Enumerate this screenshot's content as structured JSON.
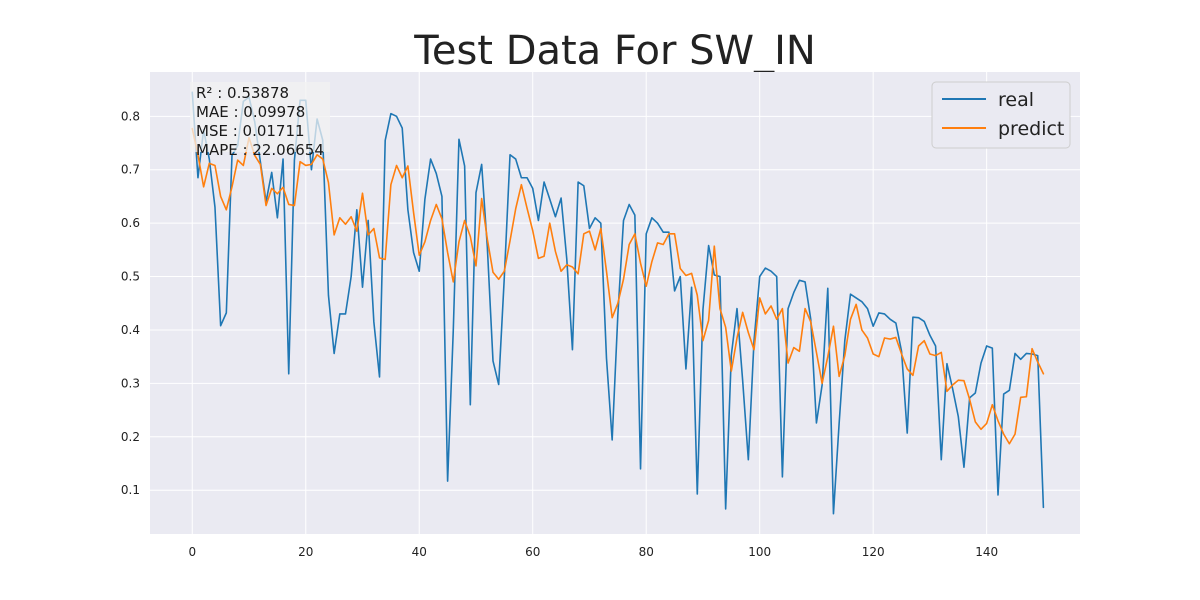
{
  "chart_data": {
    "type": "line",
    "title": "Test Data For SW_IN",
    "xlabel": "",
    "ylabel": "",
    "xlim": [
      -7.45,
      156.45
    ],
    "ylim": [
      0.018,
      0.883
    ],
    "xticks": [
      0,
      20,
      40,
      60,
      80,
      100,
      120,
      140
    ],
    "yticks": [
      0.1,
      0.2,
      0.3,
      0.4,
      0.5,
      0.6,
      0.7,
      0.8
    ],
    "grid": true,
    "legend_position": "top-right",
    "metrics": [
      "R² : 0.53878",
      "MAE : 0.09978",
      "MSE : 0.01711",
      "MAPE : 22.06654"
    ],
    "series": [
      {
        "name": "real",
        "color": "#1f77b4",
        "values": [
          0.845,
          0.685,
          0.775,
          0.72,
          0.63,
          0.408,
          0.432,
          0.727,
          0.745,
          0.828,
          0.836,
          0.79,
          0.715,
          0.64,
          0.695,
          0.61,
          0.72,
          0.318,
          0.718,
          0.83,
          0.83,
          0.7,
          0.795,
          0.755,
          0.465,
          0.356,
          0.43,
          0.43,
          0.5,
          0.625,
          0.48,
          0.605,
          0.415,
          0.312,
          0.755,
          0.805,
          0.8,
          0.778,
          0.625,
          0.545,
          0.51,
          0.645,
          0.72,
          0.693,
          0.65,
          0.117,
          0.4,
          0.757,
          0.707,
          0.26,
          0.657,
          0.71,
          0.555,
          0.342,
          0.298,
          0.5,
          0.728,
          0.72,
          0.685,
          0.685,
          0.665,
          0.605,
          0.677,
          0.645,
          0.612,
          0.647,
          0.533,
          0.363,
          0.677,
          0.67,
          0.59,
          0.61,
          0.6,
          0.347,
          0.194,
          0.428,
          0.605,
          0.635,
          0.615,
          0.14,
          0.58,
          0.61,
          0.6,
          0.583,
          0.583,
          0.473,
          0.5,
          0.327,
          0.48,
          0.093,
          0.438,
          0.558,
          0.503,
          0.5,
          0.065,
          0.353,
          0.44,
          0.305,
          0.157,
          0.38,
          0.5,
          0.516,
          0.51,
          0.5,
          0.125,
          0.44,
          0.47,
          0.493,
          0.49,
          0.42,
          0.226,
          0.297,
          0.478,
          0.056,
          0.225,
          0.38,
          0.467,
          0.46,
          0.453,
          0.44,
          0.407,
          0.432,
          0.43,
          0.42,
          0.413,
          0.36,
          0.207,
          0.424,
          0.423,
          0.416,
          0.39,
          0.37,
          0.157,
          0.337,
          0.29,
          0.238,
          0.143,
          0.273,
          0.282,
          0.338,
          0.37,
          0.366,
          0.091,
          0.28,
          0.287,
          0.356,
          0.345,
          0.356,
          0.355,
          0.352,
          0.068
        ]
      },
      {
        "name": "predict",
        "color": "#ff7f0e",
        "values": [
          0.777,
          0.728,
          0.668,
          0.712,
          0.708,
          0.65,
          0.625,
          0.668,
          0.718,
          0.708,
          0.76,
          0.727,
          0.71,
          0.633,
          0.665,
          0.655,
          0.667,
          0.635,
          0.633,
          0.715,
          0.708,
          0.71,
          0.728,
          0.72,
          0.676,
          0.578,
          0.61,
          0.598,
          0.612,
          0.585,
          0.656,
          0.578,
          0.59,
          0.535,
          0.532,
          0.672,
          0.708,
          0.685,
          0.707,
          0.62,
          0.54,
          0.565,
          0.605,
          0.635,
          0.608,
          0.545,
          0.49,
          0.565,
          0.605,
          0.575,
          0.52,
          0.646,
          0.57,
          0.508,
          0.495,
          0.51,
          0.567,
          0.627,
          0.672,
          0.628,
          0.586,
          0.534,
          0.538,
          0.6,
          0.547,
          0.51,
          0.522,
          0.518,
          0.505,
          0.58,
          0.585,
          0.55,
          0.59,
          0.51,
          0.423,
          0.45,
          0.495,
          0.56,
          0.58,
          0.525,
          0.482,
          0.528,
          0.563,
          0.56,
          0.58,
          0.58,
          0.515,
          0.502,
          0.506,
          0.465,
          0.38,
          0.418,
          0.557,
          0.44,
          0.405,
          0.323,
          0.385,
          0.433,
          0.395,
          0.363,
          0.46,
          0.43,
          0.445,
          0.42,
          0.44,
          0.338,
          0.367,
          0.36,
          0.44,
          0.415,
          0.358,
          0.3,
          0.35,
          0.407,
          0.313,
          0.352,
          0.42,
          0.448,
          0.4,
          0.385,
          0.355,
          0.35,
          0.385,
          0.383,
          0.386,
          0.355,
          0.327,
          0.315,
          0.37,
          0.38,
          0.355,
          0.352,
          0.358,
          0.285,
          0.297,
          0.306,
          0.305,
          0.27,
          0.228,
          0.214,
          0.225,
          0.26,
          0.23,
          0.205,
          0.187,
          0.205,
          0.274,
          0.275,
          0.365,
          0.34,
          0.318
        ]
      }
    ]
  }
}
